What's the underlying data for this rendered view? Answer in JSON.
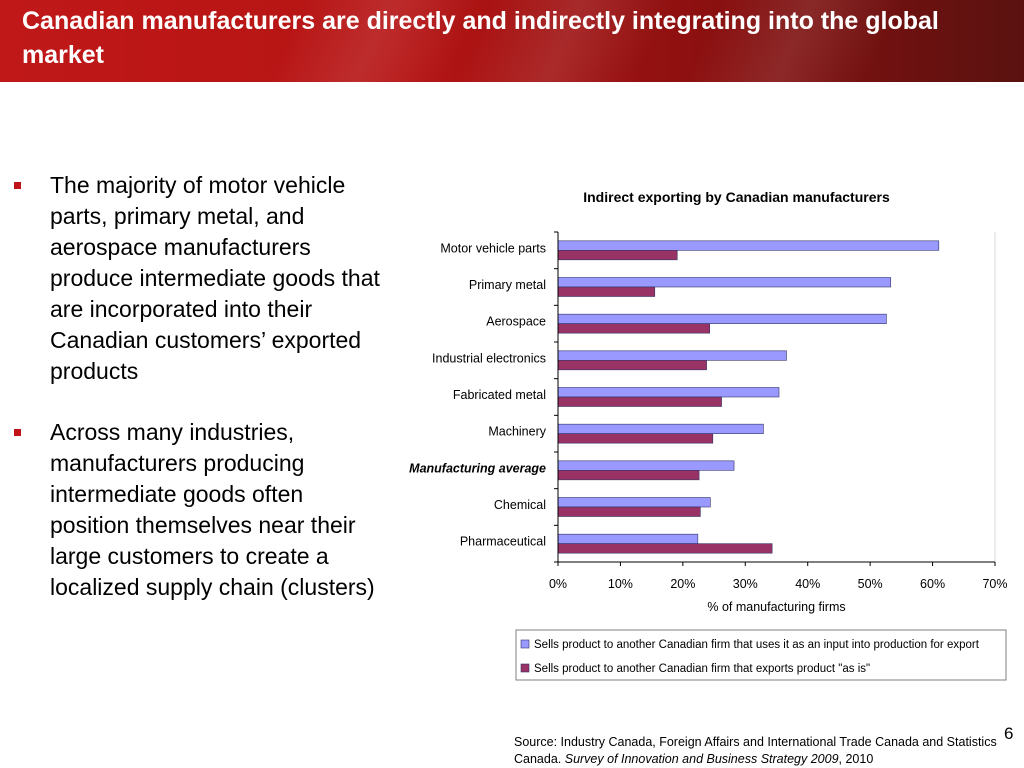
{
  "slide": {
    "title": "Canadian manufacturers are directly and indirectly integrating into the global market",
    "bullets": [
      "The majority of motor vehicle parts, primary metal, and aerospace manufacturers produce intermediate goods that are incorporated into their Canadian customers’ exported products",
      "Across many industries, manufacturers producing intermediate goods often position themselves near their large customers to create a localized supply chain (clusters)"
    ],
    "source_prefix": "Source: Industry Canada, Foreign Affairs and International Trade Canada and Statistics Canada. ",
    "source_italic": "Survey of Innovation and Business Strategy 2009",
    "source_suffix": ", 2010",
    "page_number": "6"
  },
  "colors": {
    "header_red": "#b51414",
    "bullet_red": "#c0141a",
    "series_input": "#9999ff",
    "series_as_is": "#993366"
  },
  "chart_data": {
    "type": "bar",
    "orientation": "horizontal",
    "title": "Indirect exporting by Canadian manufacturers",
    "xlabel": "% of manufacturing firms",
    "ylabel": "",
    "categories": [
      "Motor vehicle parts",
      "Primary metal",
      "Aerospace",
      "Industrial electronics",
      "Fabricated metal",
      "Machinery",
      "Manufacturing average",
      "Chemical",
      "Pharmaceutical"
    ],
    "emphasized_category": "Manufacturing average",
    "series": [
      {
        "name": "Sells product to another Canadian firm that uses it as an input into production for export",
        "color": "#9999ff",
        "values": [
          61,
          53.3,
          52.6,
          36.6,
          35.4,
          32.9,
          28.2,
          24.4,
          22.4
        ]
      },
      {
        "name": "Sells product to another Canadian firm that exports product \"as is\"",
        "color": "#993366",
        "values": [
          19.1,
          15.5,
          24.3,
          23.8,
          26.2,
          24.8,
          22.6,
          22.8,
          34.3
        ]
      }
    ],
    "xlim": [
      0,
      70
    ],
    "xticks": [
      0,
      10,
      20,
      30,
      40,
      50,
      60,
      70
    ],
    "tick_format": "percent",
    "grid": false,
    "legend_position": "bottom"
  }
}
